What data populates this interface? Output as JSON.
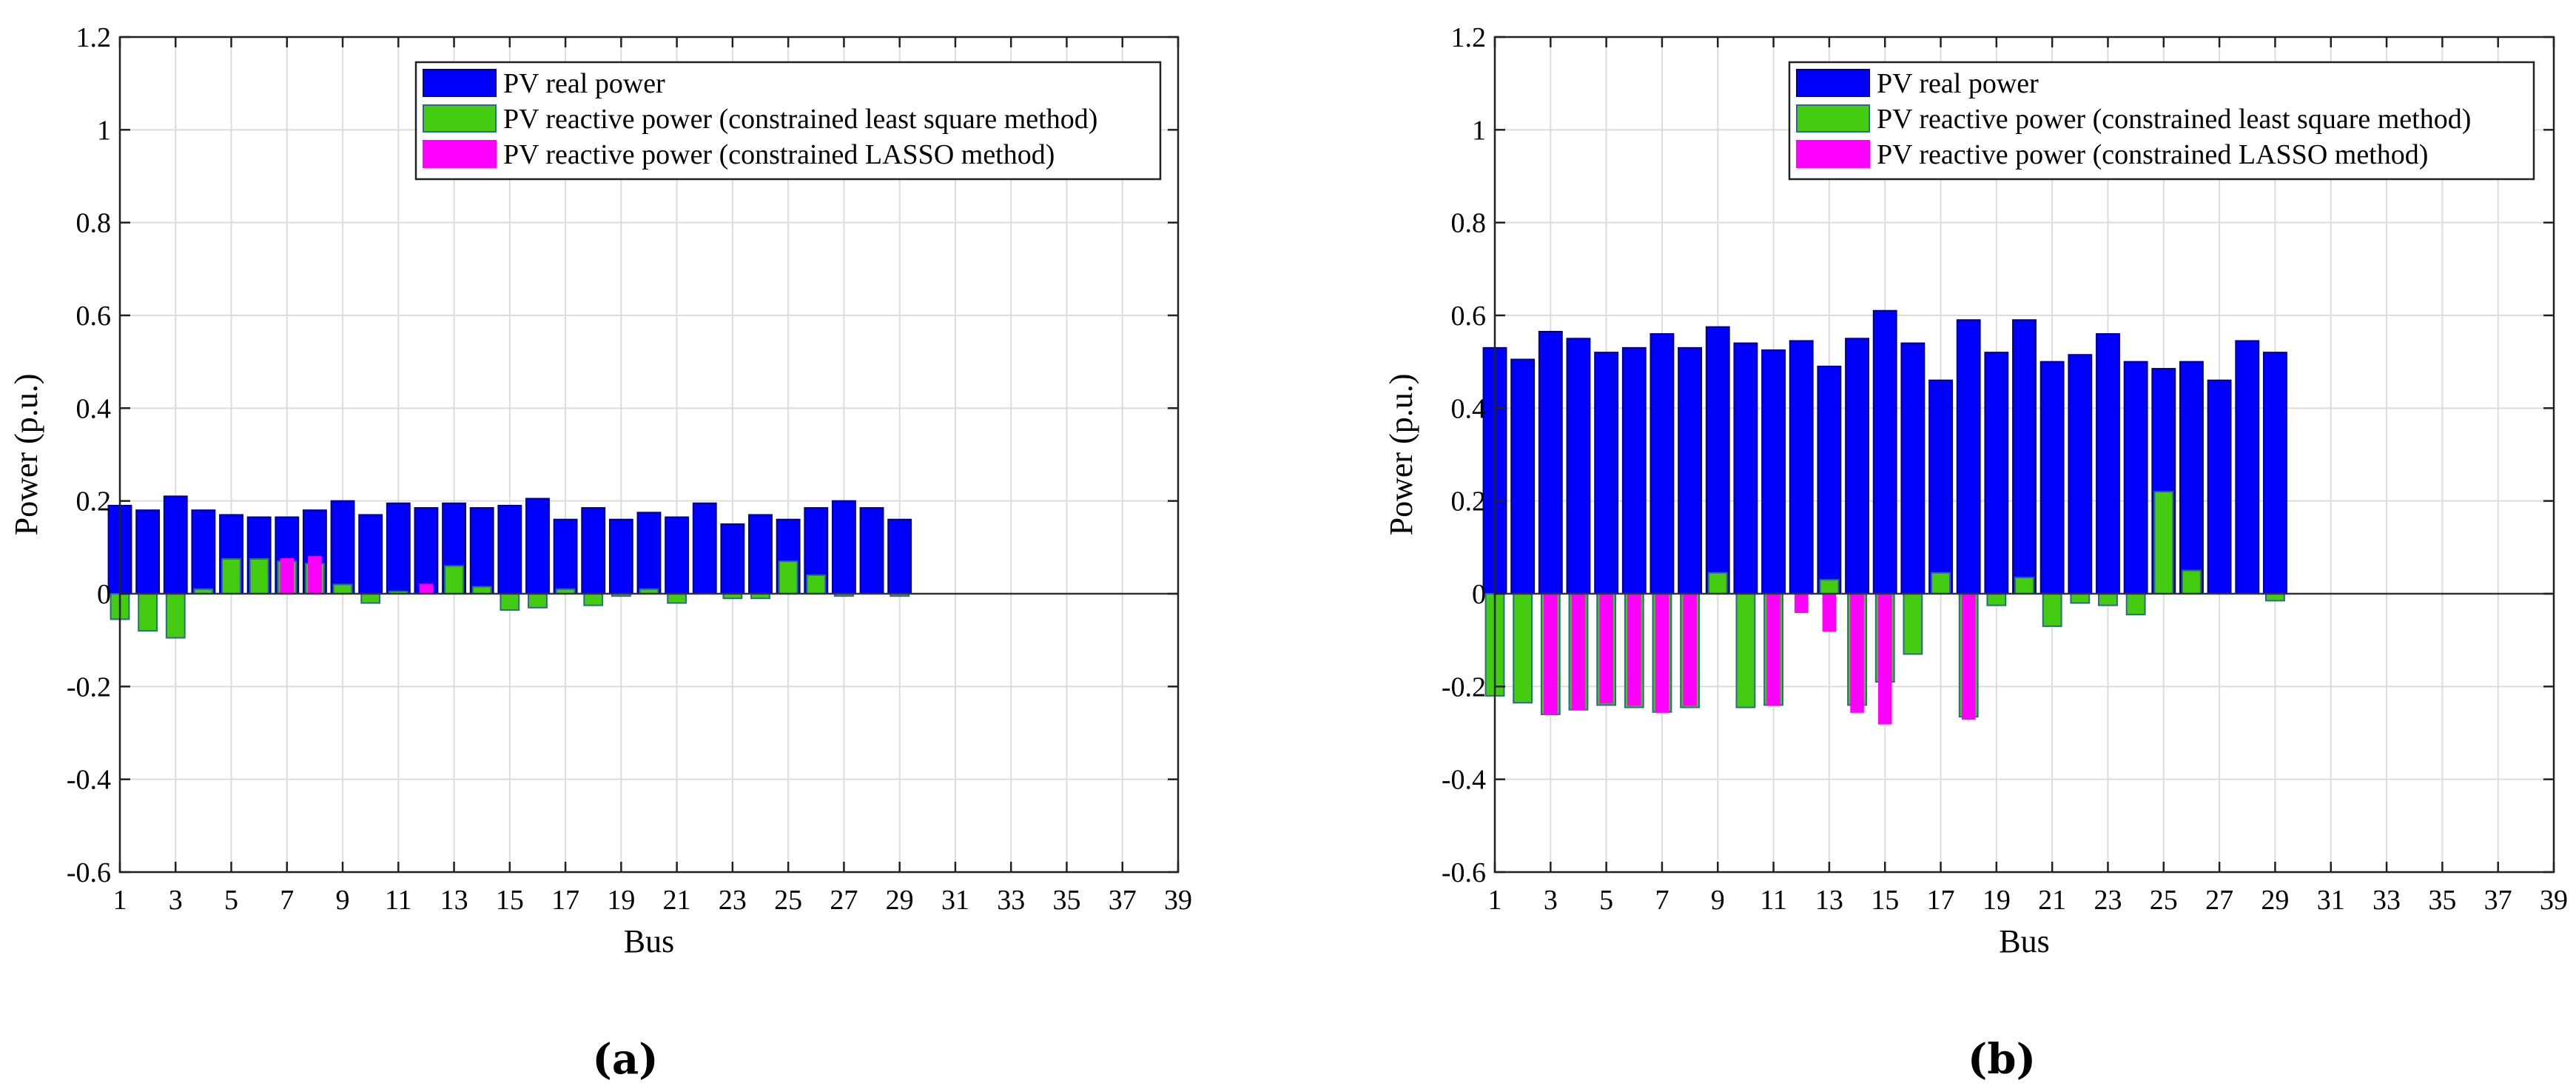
{
  "figure": {
    "colors": {
      "real": "#0000ff",
      "ls": "#44cc11",
      "lasso": "#ff00ff",
      "edge_real": "#00008b",
      "edge_ls": "#2a6a8a",
      "grid": "#dcdcdc",
      "axis": "#222222"
    }
  },
  "chart_data": [
    {
      "type": "bar",
      "panel_label": "(a)",
      "xlabel": "Bus",
      "ylabel": "Power (p.u.)",
      "ylim": [
        -0.6,
        1.2
      ],
      "yticks": [
        -0.6,
        -0.4,
        -0.2,
        0,
        0.2,
        0.4,
        0.6,
        0.8,
        1,
        1.2
      ],
      "ytick_labels": [
        "-0.6",
        "-0.4",
        "-0.2",
        "0",
        "0.2",
        "0.4",
        "0.6",
        "0.8",
        "1",
        "1.2"
      ],
      "xlim": [
        1,
        39
      ],
      "xticks": [
        1,
        3,
        5,
        7,
        9,
        11,
        13,
        15,
        17,
        19,
        21,
        23,
        25,
        27,
        29,
        31,
        33,
        35,
        37,
        39
      ],
      "xtick_labels": [
        "1",
        "3",
        "5",
        "7",
        "9",
        "11",
        "13",
        "15",
        "17",
        "19",
        "21",
        "23",
        "25",
        "27",
        "29",
        "31",
        "33",
        "35",
        "37",
        "39"
      ],
      "grid": true,
      "legend": "top-right",
      "x": [
        1,
        2,
        3,
        4,
        5,
        6,
        7,
        8,
        9,
        10,
        11,
        12,
        13,
        14,
        15,
        16,
        17,
        18,
        19,
        20,
        21,
        22,
        23,
        24,
        25,
        26,
        27,
        28,
        29
      ],
      "series": [
        {
          "name": "PV real power",
          "key": "real",
          "values": [
            0.19,
            0.18,
            0.21,
            0.18,
            0.17,
            0.165,
            0.165,
            0.18,
            0.2,
            0.17,
            0.195,
            0.185,
            0.195,
            0.185,
            0.19,
            0.205,
            0.16,
            0.185,
            0.16,
            0.175,
            0.165,
            0.195,
            0.15,
            0.17,
            0.16,
            0.185,
            0.2,
            0.185,
            0.16
          ]
        },
        {
          "name": "PV reactive power (constrained least square method)",
          "key": "ls",
          "values": [
            -0.055,
            -0.08,
            -0.095,
            0.01,
            0.075,
            0.075,
            0.07,
            0.065,
            0.02,
            -0.02,
            0.005,
            0.0,
            0.06,
            0.015,
            -0.035,
            -0.03,
            0.01,
            -0.025,
            -0.005,
            0.01,
            -0.02,
            0.0,
            -0.01,
            -0.01,
            0.07,
            0.04,
            -0.005,
            0.0,
            -0.005
          ]
        },
        {
          "name": "PV reactive power (constrained LASSO method)",
          "key": "lasso",
          "values": [
            0,
            0,
            0,
            0,
            0,
            0,
            0.075,
            0.08,
            0,
            0,
            0,
            0.02,
            0,
            0,
            0,
            0,
            0,
            0,
            0,
            0,
            0,
            0,
            0,
            0,
            0,
            0,
            0,
            0,
            0
          ]
        }
      ]
    },
    {
      "type": "bar",
      "panel_label": "(b)",
      "xlabel": "Bus",
      "ylabel": "Power (p.u.)",
      "ylim": [
        -0.6,
        1.2
      ],
      "yticks": [
        -0.6,
        -0.4,
        -0.2,
        0,
        0.2,
        0.4,
        0.6,
        0.8,
        1,
        1.2
      ],
      "ytick_labels": [
        "-0.6",
        "-0.4",
        "-0.2",
        "0",
        "0.2",
        "0.4",
        "0.6",
        "0.8",
        "1",
        "1.2"
      ],
      "xlim": [
        1,
        39
      ],
      "xticks": [
        1,
        3,
        5,
        7,
        9,
        11,
        13,
        15,
        17,
        19,
        21,
        23,
        25,
        27,
        29,
        31,
        33,
        35,
        37,
        39
      ],
      "xtick_labels": [
        "1",
        "3",
        "5",
        "7",
        "9",
        "11",
        "13",
        "15",
        "17",
        "19",
        "21",
        "23",
        "25",
        "27",
        "29",
        "31",
        "33",
        "35",
        "37",
        "39"
      ],
      "grid": true,
      "legend": "top-right",
      "x": [
        1,
        2,
        3,
        4,
        5,
        6,
        7,
        8,
        9,
        10,
        11,
        12,
        13,
        14,
        15,
        16,
        17,
        18,
        19,
        20,
        21,
        22,
        23,
        24,
        25,
        26,
        27,
        28,
        29
      ],
      "series": [
        {
          "name": "PV real power",
          "key": "real",
          "values": [
            0.53,
            0.505,
            0.565,
            0.55,
            0.52,
            0.53,
            0.56,
            0.53,
            0.575,
            0.54,
            0.525,
            0.545,
            0.49,
            0.55,
            0.61,
            0.54,
            0.46,
            0.59,
            0.52,
            0.59,
            0.5,
            0.515,
            0.56,
            0.5,
            0.485,
            0.5,
            0.46,
            0.545,
            0.52
          ]
        },
        {
          "name": "PV reactive power (constrained least square method)",
          "key": "ls",
          "values": [
            -0.22,
            -0.235,
            -0.26,
            -0.25,
            -0.24,
            -0.245,
            -0.255,
            -0.245,
            0.045,
            -0.245,
            -0.24,
            0.0,
            0.03,
            -0.24,
            -0.19,
            -0.13,
            0.045,
            -0.265,
            -0.025,
            0.035,
            -0.07,
            -0.02,
            -0.025,
            -0.045,
            0.22,
            0.05,
            0.0,
            0.0,
            -0.015
          ]
        },
        {
          "name": "PV reactive power (constrained LASSO method)",
          "key": "lasso",
          "values": [
            0,
            0,
            -0.26,
            -0.25,
            -0.235,
            -0.24,
            -0.255,
            -0.24,
            0,
            0,
            -0.24,
            -0.04,
            -0.08,
            -0.255,
            -0.28,
            0,
            0,
            -0.27,
            0,
            0,
            0,
            0,
            0,
            0,
            0,
            0,
            0,
            0,
            0
          ]
        }
      ]
    }
  ]
}
